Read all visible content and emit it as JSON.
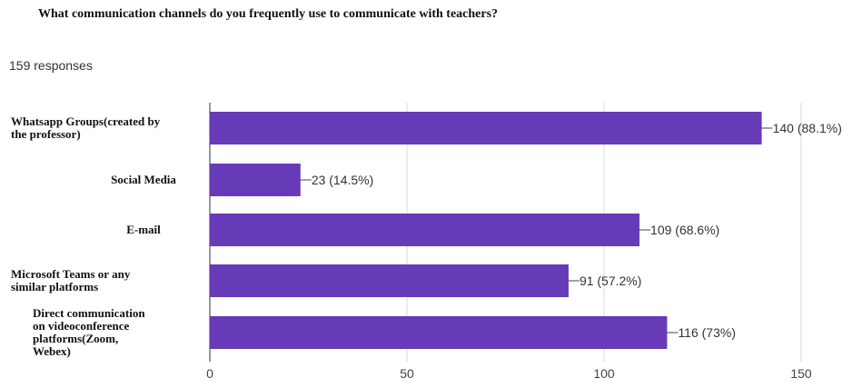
{
  "chart_data": {
    "type": "bar",
    "orientation": "horizontal",
    "title": "What communication channels do you frequently use to communicate with teachers?",
    "subtitle": "159 responses",
    "categories": [
      [
        "Whatsapp Groups(created by",
        "the professor)"
      ],
      [
        "Social Media"
      ],
      [
        "E-mail"
      ],
      [
        "Microsoft Teams or any",
        "similar platforms"
      ],
      [
        "Direct communication",
        "on videoconference",
        "platforms(Zoom,",
        "Webex)"
      ]
    ],
    "values": [
      140,
      23,
      109,
      91,
      116
    ],
    "data_labels": [
      "140 (88.1%)",
      "23 (14.5%)",
      "109 (68.6%)",
      "91 (57.2%)",
      "116 (73%)"
    ],
    "xlim": [
      0,
      150
    ],
    "xticks": [
      0,
      50,
      100,
      150
    ],
    "grid": true,
    "bar_color": "#673ab7"
  }
}
